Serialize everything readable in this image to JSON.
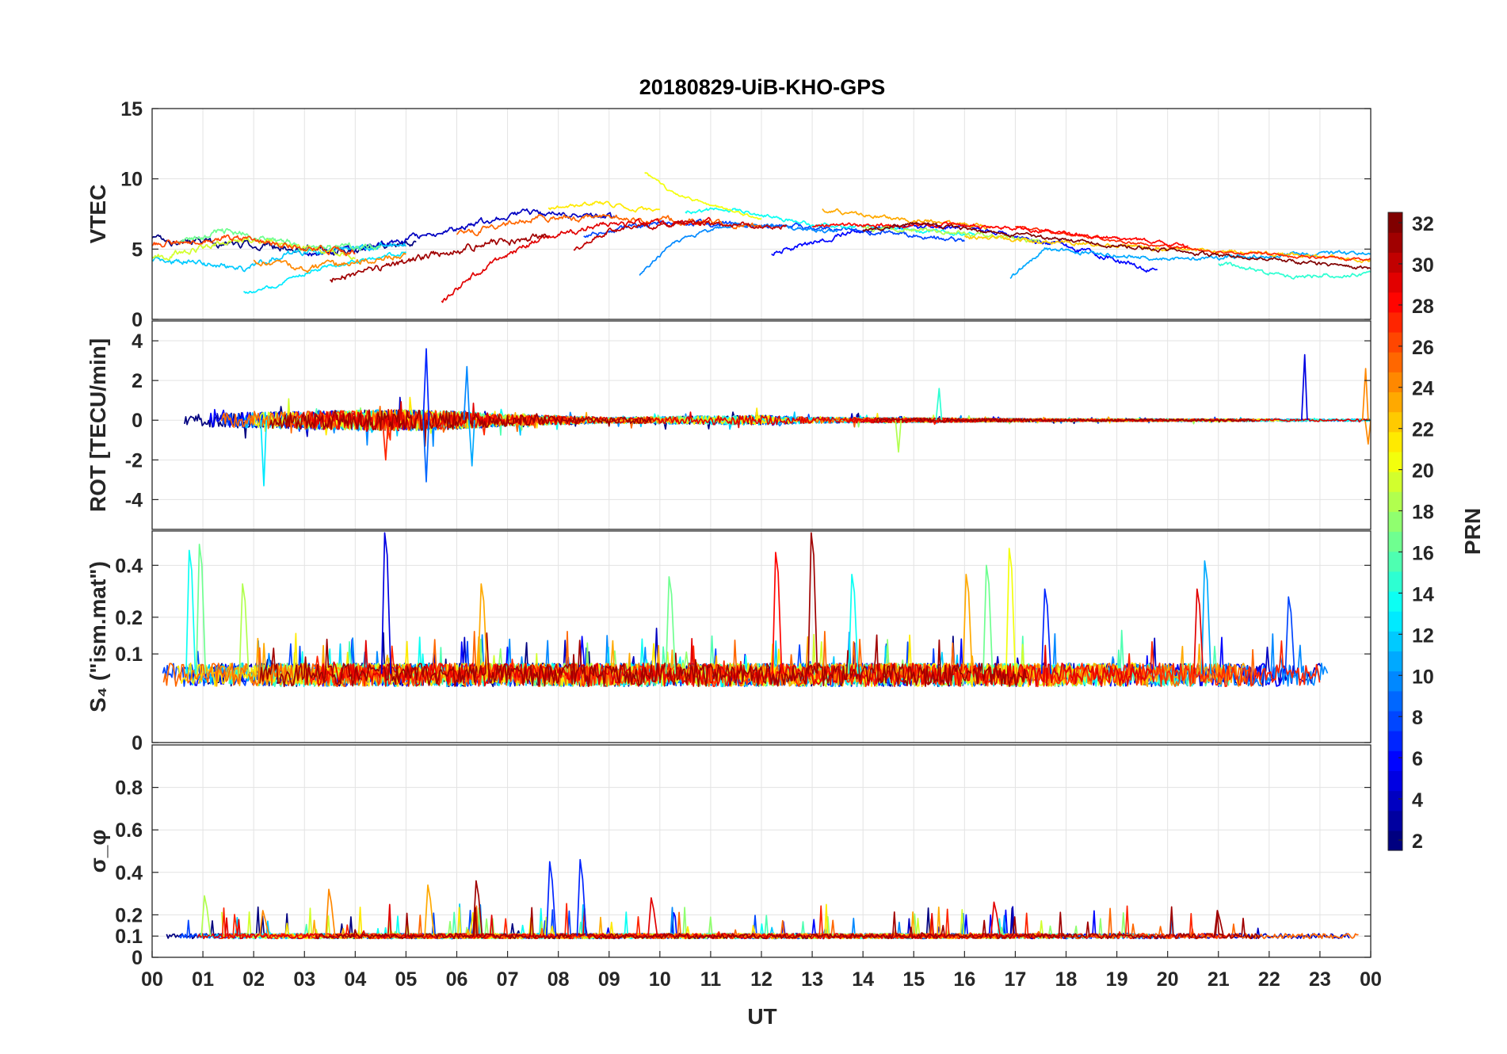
{
  "chart_data": {
    "title": "20180829-UiB-KHO-GPS",
    "type": "line",
    "x": {
      "label": "UT",
      "range_hours": [
        0,
        24
      ],
      "tick_labels": [
        "00",
        "01",
        "02",
        "03",
        "04",
        "05",
        "06",
        "07",
        "08",
        "09",
        "10",
        "11",
        "12",
        "13",
        "14",
        "15",
        "16",
        "17",
        "18",
        "19",
        "20",
        "21",
        "22",
        "23",
        "00"
      ]
    },
    "grid": true,
    "colorbar": {
      "label": "PRN",
      "range": [
        1,
        32
      ],
      "tick_labels": [
        "2",
        "4",
        "6",
        "8",
        "10",
        "12",
        "14",
        "16",
        "18",
        "20",
        "22",
        "24",
        "26",
        "28",
        "30",
        "32"
      ],
      "colormap": "jet"
    },
    "panels": [
      {
        "ylabel": "VTEC",
        "ylim": [
          0,
          15
        ],
        "ytick_labels": [
          "0",
          "5",
          "10",
          "15"
        ],
        "kind": "slow",
        "series": [
          {
            "prn": 1,
            "start_h": 0.0,
            "end_h": 5.2,
            "anchors": [
              [
                0.0,
                5.7
              ],
              [
                2.0,
                5.3
              ],
              [
                4.0,
                4.8
              ],
              [
                5.2,
                5.6
              ]
            ],
            "noise": 0.35
          },
          {
            "prn": 3,
            "start_h": 3.0,
            "end_h": 9.1,
            "anchors": [
              [
                3.0,
                4.6
              ],
              [
                5.0,
                5.6
              ],
              [
                7.2,
                7.6
              ],
              [
                9.1,
                7.2
              ]
            ],
            "noise": 0.3
          },
          {
            "prn": 5,
            "start_h": 12.2,
            "end_h": 19.8,
            "anchors": [
              [
                12.2,
                4.7
              ],
              [
                14.0,
                6.4
              ],
              [
                16.0,
                6.6
              ],
              [
                18.0,
                5.2
              ],
              [
                19.8,
                3.4
              ]
            ],
            "noise": 0.25
          },
          {
            "prn": 7,
            "start_h": 8.5,
            "end_h": 16.0,
            "anchors": [
              [
                8.5,
                5.9
              ],
              [
                10.0,
                6.9
              ],
              [
                12.5,
                6.7
              ],
              [
                14.5,
                6.2
              ],
              [
                16.0,
                5.6
              ]
            ],
            "noise": 0.25
          },
          {
            "prn": 9,
            "start_h": 9.6,
            "end_h": 13.5,
            "anchors": [
              [
                9.6,
                3.2
              ],
              [
                10.3,
                5.6
              ],
              [
                11.5,
                6.8
              ],
              [
                13.5,
                6.3
              ]
            ],
            "noise": 0.2
          },
          {
            "prn": 10,
            "start_h": 16.9,
            "end_h": 24.0,
            "anchors": [
              [
                16.9,
                3.0
              ],
              [
                17.6,
                5.0
              ],
              [
                20.0,
                4.3
              ],
              [
                22.5,
                4.6
              ],
              [
                24.0,
                4.8
              ]
            ],
            "noise": 0.2
          },
          {
            "prn": 11,
            "start_h": 0.0,
            "end_h": 5.0,
            "anchors": [
              [
                0.0,
                4.3
              ],
              [
                1.0,
                4.0
              ],
              [
                1.8,
                3.6
              ],
              [
                2.5,
                4.6
              ],
              [
                5.0,
                5.4
              ]
            ],
            "noise": 0.3
          },
          {
            "prn": 12,
            "start_h": 1.8,
            "end_h": 5.0,
            "anchors": [
              [
                1.8,
                1.9
              ],
              [
                2.3,
                2.2
              ],
              [
                3.2,
                3.6
              ],
              [
                5.0,
                4.8
              ]
            ],
            "noise": 0.2
          },
          {
            "prn": 13,
            "start_h": 10.5,
            "end_h": 16.2,
            "anchors": [
              [
                10.5,
                7.7
              ],
              [
                11.5,
                7.8
              ],
              [
                13.0,
                6.8
              ],
              [
                16.2,
                6.1
              ]
            ],
            "noise": 0.2
          },
          {
            "prn": 14,
            "start_h": 21.0,
            "end_h": 24.0,
            "anchors": [
              [
                21.0,
                4.0
              ],
              [
                22.5,
                3.0
              ],
              [
                24.0,
                3.3
              ]
            ],
            "noise": 0.2
          },
          {
            "prn": 16,
            "start_h": 0.5,
            "end_h": 4.5,
            "anchors": [
              [
                0.5,
                5.5
              ],
              [
                1.5,
                6.3
              ],
              [
                3.0,
                5.2
              ],
              [
                4.5,
                5.1
              ]
            ],
            "noise": 0.35
          },
          {
            "prn": 18,
            "start_h": 14.0,
            "end_h": 17.5,
            "anchors": [
              [
                14.0,
                6.5
              ],
              [
                15.5,
                6.3
              ],
              [
                17.5,
                5.5
              ]
            ],
            "noise": 0.25
          },
          {
            "prn": 19,
            "start_h": 0.0,
            "end_h": 4.0,
            "anchors": [
              [
                0.0,
                4.3
              ],
              [
                1.0,
                5.1
              ],
              [
                2.0,
                5.8
              ],
              [
                4.0,
                4.4
              ]
            ],
            "noise": 0.3
          },
          {
            "prn": 20,
            "start_h": 9.7,
            "end_h": 12.0,
            "anchors": [
              [
                9.7,
                10.5
              ],
              [
                10.2,
                9.1
              ],
              [
                11.0,
                8.1
              ],
              [
                12.0,
                7.1
              ]
            ],
            "noise": 0.15
          },
          {
            "prn": 21,
            "start_h": 7.8,
            "end_h": 10.0,
            "anchors": [
              [
                7.8,
                7.9
              ],
              [
                8.8,
                8.3
              ],
              [
                10.0,
                7.6
              ]
            ],
            "noise": 0.2
          },
          {
            "prn": 22,
            "start_h": 16.0,
            "end_h": 24.0,
            "anchors": [
              [
                16.0,
                5.9
              ],
              [
                18.0,
                5.5
              ],
              [
                20.0,
                5.0
              ],
              [
                22.0,
                4.7
              ],
              [
                24.0,
                4.2
              ]
            ],
            "noise": 0.2
          },
          {
            "prn": 23,
            "start_h": 13.2,
            "end_h": 16.5,
            "anchors": [
              [
                13.2,
                7.8
              ],
              [
                14.5,
                7.2
              ],
              [
                16.5,
                6.6
              ]
            ],
            "noise": 0.2
          },
          {
            "prn": 24,
            "start_h": 2.0,
            "end_h": 5.0,
            "anchors": [
              [
                2.0,
                4.2
              ],
              [
                3.0,
                3.6
              ],
              [
                5.0,
                4.6
              ]
            ],
            "noise": 0.3
          },
          {
            "prn": 25,
            "start_h": 6.0,
            "end_h": 12.0,
            "anchors": [
              [
                6.0,
                6.0
              ],
              [
                7.5,
                7.2
              ],
              [
                9.0,
                7.3
              ],
              [
                12.0,
                6.7
              ]
            ],
            "noise": 0.3
          },
          {
            "prn": 26,
            "start_h": 0.0,
            "end_h": 4.0,
            "anchors": [
              [
                0.0,
                5.3
              ],
              [
                1.5,
                5.8
              ],
              [
                4.0,
                4.7
              ]
            ],
            "noise": 0.3
          },
          {
            "prn": 27,
            "start_h": 17.0,
            "end_h": 24.0,
            "anchors": [
              [
                17.0,
                6.6
              ],
              [
                19.0,
                5.6
              ],
              [
                21.0,
                4.8
              ],
              [
                23.0,
                4.4
              ],
              [
                24.0,
                4.3
              ]
            ],
            "noise": 0.15
          },
          {
            "prn": 28,
            "start_h": 13.0,
            "end_h": 20.4,
            "anchors": [
              [
                13.0,
                6.7
              ],
              [
                16.0,
                6.7
              ],
              [
                18.0,
                6.2
              ],
              [
                20.4,
                5.2
              ]
            ],
            "noise": 0.2
          },
          {
            "prn": 29,
            "start_h": 5.7,
            "end_h": 11.0,
            "anchors": [
              [
                5.7,
                1.2
              ],
              [
                6.5,
                3.6
              ],
              [
                7.5,
                5.5
              ],
              [
                8.8,
                6.7
              ],
              [
                11.0,
                7.0
              ]
            ],
            "noise": 0.3
          },
          {
            "prn": 30,
            "start_h": 8.3,
            "end_h": 12.5,
            "anchors": [
              [
                8.3,
                4.9
              ],
              [
                9.0,
                6.3
              ],
              [
                10.5,
                6.9
              ],
              [
                12.5,
                6.6
              ]
            ],
            "noise": 0.25
          },
          {
            "prn": 31,
            "start_h": 3.5,
            "end_h": 7.8,
            "anchors": [
              [
                3.5,
                2.8
              ],
              [
                5.0,
                4.1
              ],
              [
                6.5,
                5.3
              ],
              [
                7.8,
                6.0
              ]
            ],
            "noise": 0.35
          },
          {
            "prn": 32,
            "start_h": 14.0,
            "end_h": 24.0,
            "anchors": [
              [
                14.0,
                6.3
              ],
              [
                15.0,
                6.8
              ],
              [
                17.0,
                6.0
              ],
              [
                20.0,
                4.9
              ],
              [
                24.0,
                3.6
              ]
            ],
            "noise": 0.2
          }
        ]
      },
      {
        "ylabel": "ROT [TECU/min]",
        "ylim": [
          -5.5,
          5
        ],
        "ytick_labels": [
          "-4",
          "-2",
          "0",
          "2",
          "4"
        ],
        "kind": "noise",
        "noise_profile": [
          [
            0,
            0.25
          ],
          [
            1,
            0.35
          ],
          [
            3,
            0.45
          ],
          [
            5,
            0.55
          ],
          [
            6,
            0.45
          ],
          [
            7,
            0.3
          ],
          [
            9,
            0.15
          ],
          [
            12,
            0.25
          ],
          [
            13,
            0.15
          ],
          [
            16,
            0.1
          ],
          [
            18,
            0.07
          ],
          [
            24,
            0.06
          ]
        ],
        "spikes": [
          {
            "prn": 12,
            "t": 2.2,
            "v": -3.3
          },
          {
            "prn": 6,
            "t": 5.4,
            "v": 3.6
          },
          {
            "prn": 8,
            "t": 5.4,
            "v": -3.1
          },
          {
            "prn": 9,
            "t": 6.2,
            "v": 2.7
          },
          {
            "prn": 10,
            "t": 6.3,
            "v": -2.3
          },
          {
            "prn": 27,
            "t": 4.6,
            "v": -2.0
          },
          {
            "prn": 4,
            "t": 22.7,
            "v": 3.3
          },
          {
            "prn": 24,
            "t": 23.9,
            "v": 2.6
          },
          {
            "prn": 24,
            "t": 23.95,
            "v": -1.2
          },
          {
            "prn": 18,
            "t": 14.7,
            "v": -1.6
          },
          {
            "prn": 14,
            "t": 15.5,
            "v": 1.6
          }
        ]
      },
      {
        "ylabel": "S₄ (\"ism.mat\")",
        "ylim": [
          0,
          0.57
        ],
        "ytick_labels": [
          "0",
          "0.1",
          "0.2",
          "0.4"
        ],
        "yscale": "sqrt",
        "kind": "baseline",
        "baseline": 0.06,
        "noise": 0.02,
        "spikes": [
          {
            "prn": 4,
            "t": 4.6,
            "v": 0.56
          },
          {
            "prn": 31,
            "t": 13.0,
            "v": 0.56
          },
          {
            "prn": 16,
            "t": 0.95,
            "v": 0.5
          },
          {
            "prn": 13,
            "t": 0.75,
            "v": 0.47
          },
          {
            "prn": 28,
            "t": 12.3,
            "v": 0.46
          },
          {
            "prn": 20,
            "t": 16.9,
            "v": 0.48
          },
          {
            "prn": 16,
            "t": 16.45,
            "v": 0.4
          },
          {
            "prn": 10,
            "t": 20.75,
            "v": 0.42
          },
          {
            "prn": 23,
            "t": 16.05,
            "v": 0.36
          },
          {
            "prn": 13,
            "t": 13.8,
            "v": 0.36
          },
          {
            "prn": 16,
            "t": 10.2,
            "v": 0.35
          },
          {
            "prn": 29,
            "t": 20.6,
            "v": 0.3
          },
          {
            "prn": 6,
            "t": 17.6,
            "v": 0.3
          },
          {
            "prn": 18,
            "t": 1.8,
            "v": 0.32
          },
          {
            "prn": 23,
            "t": 6.5,
            "v": 0.32
          },
          {
            "prn": 7,
            "t": 22.4,
            "v": 0.27
          }
        ]
      },
      {
        "ylabel": "σ_φ",
        "ylim": [
          0,
          1
        ],
        "ytick_labels": [
          "0",
          "0.1",
          "0.2",
          "0.4",
          "0.6",
          "0.8"
        ],
        "kind": "baseline",
        "baseline": 0.1,
        "noise": 0.012,
        "spikes": [
          {
            "prn": 6,
            "t": 7.85,
            "v": 0.45
          },
          {
            "prn": 6,
            "t": 8.45,
            "v": 0.46
          },
          {
            "prn": 31,
            "t": 6.4,
            "v": 0.36
          },
          {
            "prn": 23,
            "t": 5.45,
            "v": 0.34
          },
          {
            "prn": 24,
            "t": 3.5,
            "v": 0.32
          },
          {
            "prn": 18,
            "t": 1.05,
            "v": 0.29
          },
          {
            "prn": 29,
            "t": 9.85,
            "v": 0.28
          },
          {
            "prn": 29,
            "t": 16.6,
            "v": 0.26
          },
          {
            "prn": 31,
            "t": 21.0,
            "v": 0.22
          },
          {
            "prn": 24,
            "t": 2.2,
            "v": 0.22
          }
        ]
      }
    ]
  }
}
